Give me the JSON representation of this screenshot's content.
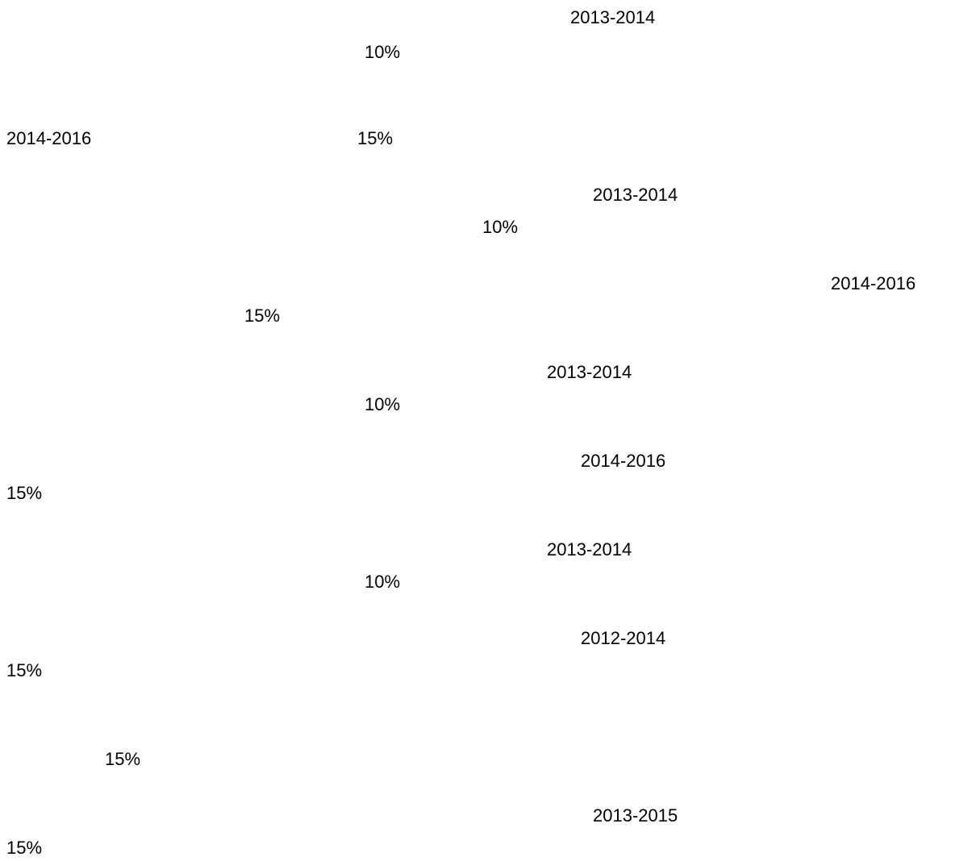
{
  "items": [
    "2013-2014",
    "10%",
    "2014-2016",
    "15%",
    "2013-2014",
    "10%",
    "2014-2016",
    "15%",
    "2013-2014",
    "10%",
    "2014-2016",
    "15%",
    "2013-2014",
    "10%",
    "2012-2014",
    "15%",
    "15%",
    "2013-2015",
    "15%"
  ]
}
